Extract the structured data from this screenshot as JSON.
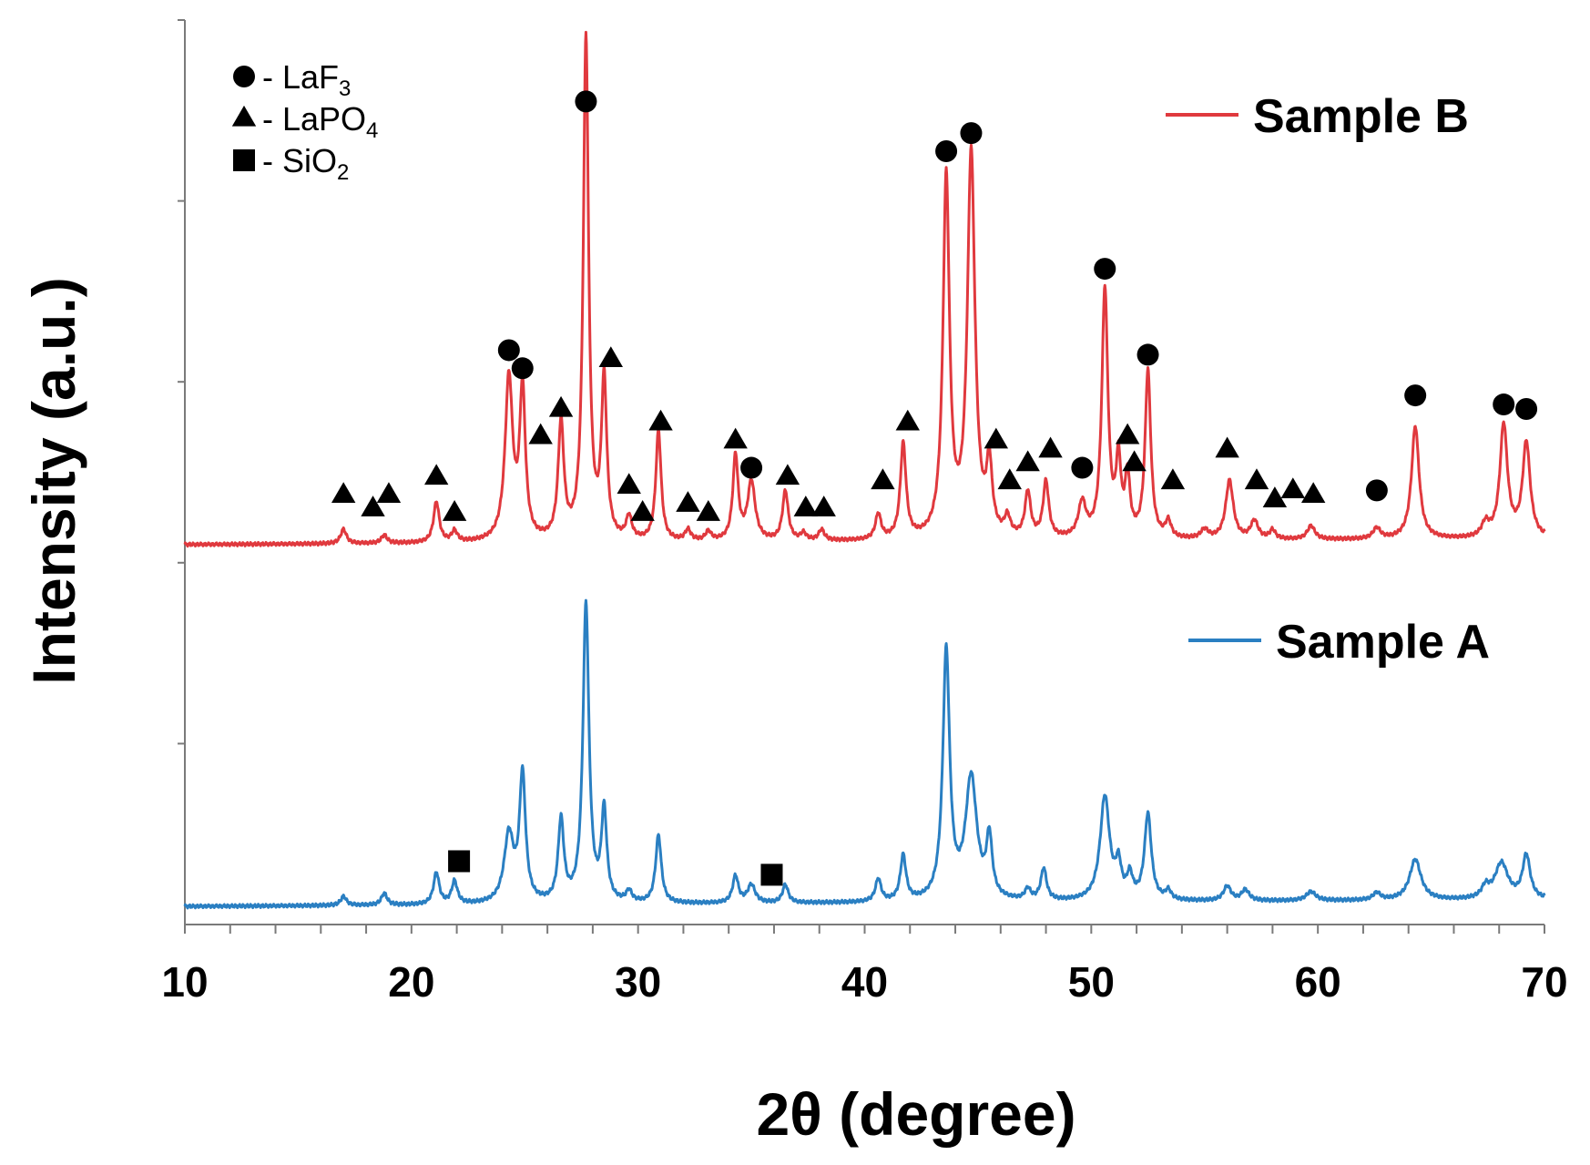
{
  "chart_data": {
    "type": "line",
    "title": "",
    "xlabel": "2θ (degree)",
    "ylabel": "Intensity (a.u.)",
    "xlim": [
      10,
      70
    ],
    "ylim": [
      0,
      100
    ],
    "x_ticks": [
      10,
      20,
      30,
      40,
      50,
      60,
      70
    ],
    "x_tick_labels": [
      "10",
      "20",
      "30",
      "40",
      "50",
      "60",
      "70"
    ],
    "x_minor_step": 2,
    "y_tick_values": [
      20,
      40,
      60,
      80,
      100
    ],
    "y_tick_labels_shown": false,
    "grid": false,
    "legend_position": "top-left",
    "phase_legend": [
      {
        "marker": "circle",
        "label": "- LaF",
        "sub": "3"
      },
      {
        "marker": "triangle",
        "label": "- LaPO",
        "sub": "4"
      },
      {
        "marker": "square",
        "label": "- SiO",
        "sub": "2"
      }
    ],
    "series": [
      {
        "name": "Sample B",
        "color": "#e0393e",
        "baseline": 42,
        "peaks": [
          [
            17.0,
            1.6,
            0.15
          ],
          [
            18.8,
            0.9,
            0.15
          ],
          [
            21.1,
            4.5,
            0.15
          ],
          [
            21.9,
            1.2,
            0.15
          ],
          [
            24.3,
            18.0,
            0.2
          ],
          [
            24.9,
            16.5,
            0.15
          ],
          [
            26.6,
            12.8,
            0.15
          ],
          [
            27.7,
            55.5,
            0.14
          ],
          [
            28.5,
            17.5,
            0.14
          ],
          [
            29.6,
            2.5,
            0.15
          ],
          [
            30.9,
            12.2,
            0.14
          ],
          [
            32.2,
            1.2,
            0.15
          ],
          [
            33.1,
            1.0,
            0.15
          ],
          [
            34.3,
            9.4,
            0.14
          ],
          [
            35.0,
            6.5,
            0.2
          ],
          [
            36.5,
            5.5,
            0.15
          ],
          [
            37.3,
            0.8,
            0.15
          ],
          [
            38.1,
            1.2,
            0.15
          ],
          [
            40.6,
            2.8,
            0.15
          ],
          [
            41.7,
            10.5,
            0.15
          ],
          [
            43.6,
            39.7,
            0.17
          ],
          [
            44.7,
            42.5,
            0.2
          ],
          [
            45.5,
            7.5,
            0.15
          ],
          [
            46.3,
            2.0,
            0.15
          ],
          [
            47.2,
            5.0,
            0.15
          ],
          [
            48.0,
            6.2,
            0.15
          ],
          [
            49.6,
            3.8,
            0.2
          ],
          [
            50.6,
            27.5,
            0.16
          ],
          [
            51.2,
            8.0,
            0.13
          ],
          [
            51.6,
            6.5,
            0.13
          ],
          [
            52.5,
            18.5,
            0.15
          ],
          [
            53.4,
            1.8,
            0.15
          ],
          [
            55.0,
            1.0,
            0.2
          ],
          [
            56.1,
            6.5,
            0.2
          ],
          [
            57.2,
            2.0,
            0.2
          ],
          [
            58.0,
            1.0,
            0.15
          ],
          [
            59.7,
            1.5,
            0.2
          ],
          [
            62.6,
            1.2,
            0.2
          ],
          [
            64.3,
            12.5,
            0.2
          ],
          [
            67.4,
            1.5,
            0.2
          ],
          [
            68.2,
            12.5,
            0.2
          ],
          [
            69.2,
            10.5,
            0.2
          ]
        ]
      },
      {
        "name": "Sample A",
        "color": "#2a7fc2",
        "baseline": 2.0,
        "peaks": [
          [
            17.0,
            1.0,
            0.15
          ],
          [
            18.8,
            1.3,
            0.15
          ],
          [
            21.1,
            3.5,
            0.15
          ],
          [
            21.9,
            2.5,
            0.15
          ],
          [
            24.3,
            7.5,
            0.25
          ],
          [
            24.9,
            14.0,
            0.16
          ],
          [
            26.6,
            9.0,
            0.15
          ],
          [
            27.7,
            33.0,
            0.16
          ],
          [
            28.5,
            10.0,
            0.14
          ],
          [
            29.6,
            1.2,
            0.15
          ],
          [
            30.9,
            7.5,
            0.15
          ],
          [
            34.3,
            3.0,
            0.15
          ],
          [
            35.0,
            2.0,
            0.2
          ],
          [
            36.5,
            2.0,
            0.15
          ],
          [
            40.6,
            2.5,
            0.15
          ],
          [
            41.7,
            5.0,
            0.15
          ],
          [
            43.6,
            27.5,
            0.18
          ],
          [
            44.7,
            13.5,
            0.3
          ],
          [
            45.5,
            6.5,
            0.15
          ],
          [
            47.2,
            1.2,
            0.15
          ],
          [
            47.9,
            3.5,
            0.15
          ],
          [
            50.6,
            11.5,
            0.25
          ],
          [
            51.2,
            3.5,
            0.15
          ],
          [
            51.7,
            2.5,
            0.15
          ],
          [
            52.5,
            9.5,
            0.18
          ],
          [
            53.4,
            1.0,
            0.15
          ],
          [
            56.0,
            1.6,
            0.2
          ],
          [
            56.8,
            1.2,
            0.2
          ],
          [
            59.7,
            1.0,
            0.25
          ],
          [
            62.6,
            0.8,
            0.2
          ],
          [
            64.3,
            4.5,
            0.3
          ],
          [
            67.4,
            1.2,
            0.2
          ],
          [
            68.1,
            4.0,
            0.35
          ],
          [
            69.2,
            4.8,
            0.2
          ]
        ]
      }
    ],
    "markers": [
      {
        "shape": "circle",
        "x": 24.3,
        "y": 63.5
      },
      {
        "shape": "circle",
        "x": 24.9,
        "y": 61.5
      },
      {
        "shape": "circle",
        "x": 27.7,
        "y": 91.0
      },
      {
        "shape": "circle",
        "x": 35.0,
        "y": 50.5
      },
      {
        "shape": "circle",
        "x": 43.6,
        "y": 85.5
      },
      {
        "shape": "circle",
        "x": 44.7,
        "y": 87.5
      },
      {
        "shape": "circle",
        "x": 49.6,
        "y": 50.5
      },
      {
        "shape": "circle",
        "x": 50.6,
        "y": 72.5
      },
      {
        "shape": "circle",
        "x": 52.5,
        "y": 63.0
      },
      {
        "shape": "circle",
        "x": 62.6,
        "y": 48.0
      },
      {
        "shape": "circle",
        "x": 64.3,
        "y": 58.5
      },
      {
        "shape": "circle",
        "x": 68.2,
        "y": 57.5
      },
      {
        "shape": "circle",
        "x": 69.2,
        "y": 57.0
      },
      {
        "shape": "triangle",
        "x": 17.0,
        "y": 47.5
      },
      {
        "shape": "triangle",
        "x": 18.3,
        "y": 46.0
      },
      {
        "shape": "triangle",
        "x": 19.0,
        "y": 47.5
      },
      {
        "shape": "triangle",
        "x": 21.1,
        "y": 49.5
      },
      {
        "shape": "triangle",
        "x": 21.9,
        "y": 45.5
      },
      {
        "shape": "triangle",
        "x": 25.7,
        "y": 54.0
      },
      {
        "shape": "triangle",
        "x": 26.6,
        "y": 57.0
      },
      {
        "shape": "triangle",
        "x": 28.8,
        "y": 62.5
      },
      {
        "shape": "triangle",
        "x": 29.6,
        "y": 48.5
      },
      {
        "shape": "triangle",
        "x": 30.2,
        "y": 45.5
      },
      {
        "shape": "triangle",
        "x": 31.0,
        "y": 55.5
      },
      {
        "shape": "triangle",
        "x": 32.2,
        "y": 46.5
      },
      {
        "shape": "triangle",
        "x": 33.1,
        "y": 45.5
      },
      {
        "shape": "triangle",
        "x": 34.3,
        "y": 53.5
      },
      {
        "shape": "triangle",
        "x": 36.6,
        "y": 49.5
      },
      {
        "shape": "triangle",
        "x": 37.4,
        "y": 46.0
      },
      {
        "shape": "triangle",
        "x": 38.2,
        "y": 46.0
      },
      {
        "shape": "triangle",
        "x": 40.8,
        "y": 49.0
      },
      {
        "shape": "triangle",
        "x": 41.9,
        "y": 55.5
      },
      {
        "shape": "triangle",
        "x": 45.8,
        "y": 53.5
      },
      {
        "shape": "triangle",
        "x": 46.4,
        "y": 49.0
      },
      {
        "shape": "triangle",
        "x": 47.2,
        "y": 51.0
      },
      {
        "shape": "triangle",
        "x": 48.2,
        "y": 52.5
      },
      {
        "shape": "triangle",
        "x": 51.6,
        "y": 54.0
      },
      {
        "shape": "triangle",
        "x": 51.9,
        "y": 51.0
      },
      {
        "shape": "triangle",
        "x": 53.6,
        "y": 49.0
      },
      {
        "shape": "triangle",
        "x": 56.0,
        "y": 52.5
      },
      {
        "shape": "triangle",
        "x": 57.3,
        "y": 49.0
      },
      {
        "shape": "triangle",
        "x": 58.1,
        "y": 47.0
      },
      {
        "shape": "triangle",
        "x": 58.9,
        "y": 48.0
      },
      {
        "shape": "triangle",
        "x": 59.8,
        "y": 47.5
      },
      {
        "shape": "square",
        "x": 22.1,
        "y": 7.0
      },
      {
        "shape": "square",
        "x": 35.9,
        "y": 5.5
      }
    ]
  }
}
